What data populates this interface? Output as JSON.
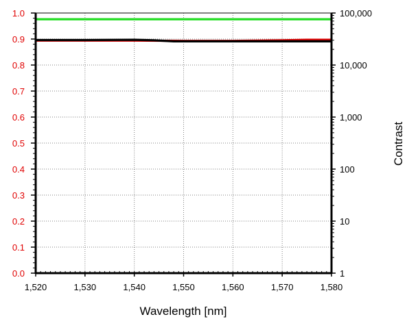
{
  "chart_data": {
    "type": "line",
    "title": "",
    "xlabel": "Wavelength [nm]",
    "ylabel_left": "",
    "ylabel_right": "Contrast",
    "xlim": [
      1520,
      1580
    ],
    "ylim_left": [
      0,
      1
    ],
    "ylim_right": [
      1,
      100000
    ],
    "right_axis_scale": "log",
    "grid": true,
    "x_ticks": [
      "1,520",
      "1,530",
      "1,540",
      "1,550",
      "1,560",
      "1,570",
      "1,580"
    ],
    "y_left_ticks": [
      "0.0",
      "0.1",
      "0.2",
      "0.3",
      "0.4",
      "0.5",
      "0.6",
      "0.7",
      "0.8",
      "0.9",
      "1.0"
    ],
    "y_right_ticks": [
      "1",
      "10",
      "100",
      "1,000",
      "10,000",
      "100,000"
    ],
    "series": [
      {
        "axis": "left",
        "color": "#22dd22",
        "x": [
          1520,
          1530,
          1540,
          1550,
          1560,
          1570,
          1580
        ],
        "values": [
          0.976,
          0.976,
          0.976,
          0.976,
          0.976,
          0.976,
          0.976
        ]
      },
      {
        "axis": "left",
        "color": "#e00000",
        "x": [
          1520,
          1530,
          1540,
          1550,
          1560,
          1570,
          1575,
          1580
        ],
        "values": [
          0.894,
          0.894,
          0.894,
          0.893,
          0.893,
          0.895,
          0.897,
          0.897
        ]
      },
      {
        "axis": "left",
        "color": "#000000",
        "x": [
          1520,
          1530,
          1540,
          1544,
          1548,
          1555,
          1565,
          1570,
          1575,
          1580
        ],
        "values": [
          0.896,
          0.896,
          0.897,
          0.895,
          0.891,
          0.891,
          0.891,
          0.891,
          0.891,
          0.891
        ]
      }
    ],
    "colors": {
      "left_axis": "#e00000",
      "right_axis": "#000000",
      "grid": "#7f7f7f"
    }
  }
}
